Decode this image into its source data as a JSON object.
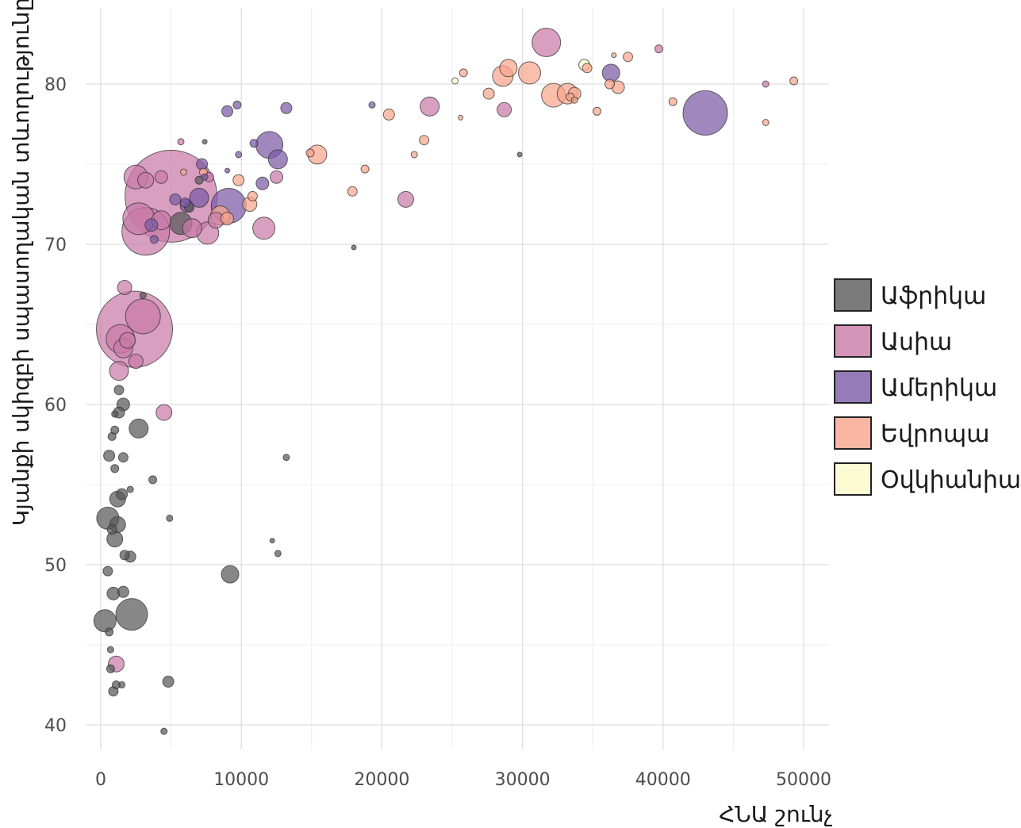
{
  "chart_data": {
    "type": "scatter",
    "xlabel": "ՀՆԱ շունչ",
    "ylabel": "Կյանքի սկիզբի սպասողական տևողությունը",
    "xlim": [
      0,
      52000
    ],
    "ylim": [
      38,
      85
    ],
    "x_ticks": [
      "0",
      "10000",
      "20000",
      "30000",
      "40000",
      "50000"
    ],
    "y_ticks": [
      "40",
      "50",
      "60",
      "70",
      "80"
    ],
    "x_tick_values": [
      0,
      10000,
      20000,
      30000,
      40000,
      50000
    ],
    "y_tick_values": [
      40,
      50,
      60,
      70,
      80
    ],
    "grid": true,
    "legend_position": "right",
    "legend": [
      {
        "key": "africa",
        "label": "Աֆրիկա",
        "color": "#595959"
      },
      {
        "key": "asia",
        "label": "Ասիա",
        "color": "#c97aa8"
      },
      {
        "key": "americas",
        "label": "Ամերիկա",
        "color": "#7b5aa6"
      },
      {
        "key": "europe",
        "label": "Եվրոպա",
        "color": "#f8a58c"
      },
      {
        "key": "oceania",
        "label": "Օվկիանիա",
        "color": "#fdfbd4"
      }
    ],
    "series": [
      {
        "key": "africa",
        "points": [
          [
            900,
            42.1,
            6
          ],
          [
            1100,
            42.5,
            5
          ],
          [
            1500,
            42.5,
            4
          ],
          [
            700,
            43.5,
            5
          ],
          [
            4800,
            42.7,
            7
          ],
          [
            4500,
            39.6,
            4
          ],
          [
            300,
            46.5,
            14
          ],
          [
            2200,
            46.9,
            20
          ],
          [
            600,
            45.8,
            5
          ],
          [
            900,
            48.2,
            8
          ],
          [
            1600,
            48.3,
            7
          ],
          [
            500,
            49.6,
            6
          ],
          [
            9200,
            49.4,
            11
          ],
          [
            700,
            44.7,
            4
          ],
          [
            1000,
            51.6,
            10
          ],
          [
            1700,
            50.6,
            6
          ],
          [
            2100,
            50.5,
            7
          ],
          [
            500,
            52.9,
            14
          ],
          [
            1200,
            52.5,
            10
          ],
          [
            800,
            52.2,
            6
          ],
          [
            1200,
            54.1,
            10
          ],
          [
            1500,
            54.4,
            7
          ],
          [
            2100,
            54.7,
            4
          ],
          [
            3700,
            55.3,
            5
          ],
          [
            12600,
            50.7,
            4
          ],
          [
            12200,
            51.5,
            3
          ],
          [
            4900,
            52.9,
            4
          ],
          [
            600,
            56.8,
            7
          ],
          [
            1600,
            56.7,
            6
          ],
          [
            1000,
            56.0,
            5
          ],
          [
            13200,
            56.7,
            4
          ],
          [
            800,
            58.0,
            5
          ],
          [
            1000,
            58.4,
            5
          ],
          [
            2700,
            58.5,
            12
          ],
          [
            1300,
            59.5,
            7
          ],
          [
            1600,
            60.0,
            8
          ],
          [
            1300,
            60.9,
            6
          ],
          [
            1000,
            59.4,
            4
          ],
          [
            3000,
            66.8,
            4
          ],
          [
            5700,
            71.3,
            14
          ],
          [
            7000,
            74.0,
            5
          ],
          [
            6300,
            72.3,
            6
          ],
          [
            7400,
            76.4,
            3
          ],
          [
            18000,
            69.8,
            3
          ],
          [
            29800,
            75.6,
            3
          ]
        ]
      },
      {
        "key": "asia",
        "points": [
          [
            5000,
            73.0,
            58
          ],
          [
            2400,
            64.7,
            48
          ],
          [
            1100,
            43.8,
            10
          ],
          [
            1300,
            62.1,
            12
          ],
          [
            2500,
            62.7,
            9
          ],
          [
            4500,
            59.5,
            10
          ],
          [
            1700,
            67.3,
            9
          ],
          [
            3000,
            65.5,
            22
          ],
          [
            1400,
            64.1,
            18
          ],
          [
            1600,
            63.5,
            12
          ],
          [
            1900,
            64.0,
            10
          ],
          [
            3200,
            70.8,
            30
          ],
          [
            2700,
            71.6,
            20
          ],
          [
            4300,
            71.5,
            12
          ],
          [
            2500,
            74.2,
            15
          ],
          [
            3200,
            74.0,
            10
          ],
          [
            4300,
            74.2,
            8
          ],
          [
            6500,
            71.0,
            12
          ],
          [
            7600,
            70.7,
            14
          ],
          [
            8200,
            71.5,
            10
          ],
          [
            7700,
            74.2,
            6
          ],
          [
            11600,
            71.0,
            14
          ],
          [
            12500,
            74.2,
            8
          ],
          [
            21700,
            72.8,
            10
          ],
          [
            23400,
            78.6,
            12
          ],
          [
            28700,
            78.4,
            9
          ],
          [
            31700,
            82.6,
            18
          ],
          [
            39700,
            82.2,
            5
          ],
          [
            47300,
            80.0,
            4
          ],
          [
            5700,
            76.4,
            4
          ]
        ]
      },
      {
        "key": "americas",
        "points": [
          [
            43000,
            78.2,
            28
          ],
          [
            9100,
            72.4,
            22
          ],
          [
            12000,
            76.2,
            17
          ],
          [
            12600,
            75.3,
            12
          ],
          [
            13200,
            78.5,
            7
          ],
          [
            11500,
            73.8,
            8
          ],
          [
            9700,
            78.7,
            5
          ],
          [
            9000,
            78.3,
            7
          ],
          [
            5300,
            72.8,
            7
          ],
          [
            6100,
            72.4,
            8
          ],
          [
            7000,
            72.9,
            12
          ],
          [
            7200,
            75.0,
            7
          ],
          [
            6000,
            72.6,
            6
          ],
          [
            3800,
            70.3,
            5
          ],
          [
            3600,
            71.2,
            8
          ],
          [
            10900,
            76.3,
            5
          ],
          [
            19300,
            78.7,
            4
          ],
          [
            36300,
            80.7,
            11
          ],
          [
            9800,
            75.6,
            4
          ],
          [
            9000,
            74.6,
            3
          ],
          [
            7400,
            74.2,
            4
          ]
        ]
      },
      {
        "key": "europe",
        "points": [
          [
            32200,
            79.3,
            15
          ],
          [
            33200,
            79.4,
            13
          ],
          [
            30500,
            80.7,
            14
          ],
          [
            28600,
            80.5,
            13
          ],
          [
            29000,
            81.0,
            11
          ],
          [
            27600,
            79.4,
            7
          ],
          [
            33700,
            79.4,
            8
          ],
          [
            34600,
            81.0,
            6
          ],
          [
            36200,
            80.0,
            6
          ],
          [
            36800,
            79.8,
            8
          ],
          [
            37500,
            81.7,
            6
          ],
          [
            35300,
            78.3,
            5
          ],
          [
            40700,
            78.9,
            5
          ],
          [
            49300,
            80.2,
            5
          ],
          [
            47300,
            77.6,
            4
          ],
          [
            25800,
            80.7,
            5
          ],
          [
            20500,
            78.1,
            7
          ],
          [
            23000,
            76.5,
            6
          ],
          [
            22300,
            75.6,
            4
          ],
          [
            18800,
            74.7,
            5
          ],
          [
            17900,
            73.3,
            6
          ],
          [
            15400,
            75.6,
            12
          ],
          [
            14900,
            75.7,
            5
          ],
          [
            10600,
            72.5,
            9
          ],
          [
            10800,
            73.0,
            6
          ],
          [
            9800,
            74.0,
            7
          ],
          [
            8500,
            71.8,
            12
          ],
          [
            9000,
            71.6,
            8
          ],
          [
            7300,
            74.5,
            5
          ],
          [
            5900,
            74.5,
            4
          ],
          [
            33400,
            79.2,
            5
          ],
          [
            33700,
            79.0,
            4
          ],
          [
            36500,
            81.8,
            3
          ],
          [
            25600,
            77.9,
            3
          ]
        ]
      },
      {
        "key": "oceania",
        "points": [
          [
            34400,
            81.2,
            7
          ],
          [
            25200,
            80.2,
            4
          ]
        ]
      }
    ]
  }
}
